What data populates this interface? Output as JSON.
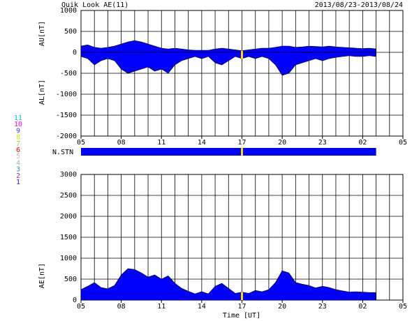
{
  "chart_data": [
    {
      "type": "area",
      "title": "Quik Look AE(11)",
      "subtitle": "2013/08/23-2013/08/24",
      "ylabel_upper": "AU[nT]",
      "ylabel_lower": "AL[nT]",
      "x": [
        0,
        0.5,
        1,
        1.5,
        2,
        2.5,
        3,
        3.5,
        4,
        4.5,
        5,
        5.5,
        6,
        6.5,
        7,
        7.5,
        8,
        8.5,
        9,
        9.5,
        10,
        10.5,
        11,
        11.5,
        12,
        12.5,
        13,
        13.5,
        14,
        14.5,
        15,
        15.5,
        16,
        16.5,
        17,
        17.5,
        18,
        18.5,
        19,
        19.5,
        20,
        20.5,
        21,
        21.5,
        22
      ],
      "series": [
        {
          "name": "AU",
          "color": "#0000ff",
          "values": [
            150,
            180,
            120,
            100,
            120,
            150,
            200,
            250,
            280,
            250,
            200,
            150,
            100,
            80,
            100,
            80,
            60,
            50,
            50,
            50,
            80,
            100,
            80,
            60,
            40,
            60,
            80,
            100,
            100,
            120,
            150,
            150,
            120,
            130,
            150,
            140,
            130,
            150,
            130,
            120,
            110,
            100,
            90,
            100,
            80
          ]
        },
        {
          "name": "AL",
          "color": "#0000ff",
          "values": [
            -100,
            -150,
            -300,
            -200,
            -150,
            -200,
            -400,
            -500,
            -450,
            -400,
            -350,
            -450,
            -400,
            -500,
            -300,
            -200,
            -150,
            -100,
            -150,
            -100,
            -250,
            -300,
            -200,
            -100,
            -150,
            -100,
            -150,
            -100,
            -150,
            -300,
            -550,
            -500,
            -300,
            -250,
            -200,
            -150,
            -200,
            -150,
            -120,
            -100,
            -80,
            -100,
            -100,
            -80,
            -100
          ]
        }
      ],
      "highlight_x": 12,
      "highlight_color": "#ffd700",
      "xlim": [
        0,
        24
      ],
      "xticks": [
        {
          "value": 0,
          "label": "05"
        },
        {
          "value": 3,
          "label": "08"
        },
        {
          "value": 6,
          "label": "11"
        },
        {
          "value": 9,
          "label": "14"
        },
        {
          "value": 12,
          "label": "17"
        },
        {
          "value": 15,
          "label": "20"
        },
        {
          "value": 18,
          "label": "23"
        },
        {
          "value": 21,
          "label": "02"
        },
        {
          "value": 24,
          "label": "05"
        }
      ],
      "x_minor_step": 1,
      "ylim": [
        -2000,
        1000
      ],
      "yticks": [
        1000,
        500,
        0,
        -500,
        -1000,
        -1500,
        -2000
      ],
      "grid": true
    },
    {
      "type": "area",
      "ylabel": "AE[nT]",
      "xlabel": "Time [UT]",
      "x": [
        0,
        0.5,
        1,
        1.5,
        2,
        2.5,
        3,
        3.5,
        4,
        4.5,
        5,
        5.5,
        6,
        6.5,
        7,
        7.5,
        8,
        8.5,
        9,
        9.5,
        10,
        10.5,
        11,
        11.5,
        12,
        12.5,
        13,
        13.5,
        14,
        14.5,
        15,
        15.5,
        16,
        16.5,
        17,
        17.5,
        18,
        18.5,
        19,
        19.5,
        20,
        20.5,
        21,
        21.5,
        22
      ],
      "series": [
        {
          "name": "AE",
          "color": "#0000ff",
          "values": [
            250,
            330,
            420,
            300,
            270,
            350,
            600,
            750,
            730,
            650,
            550,
            600,
            500,
            580,
            400,
            280,
            210,
            150,
            200,
            150,
            330,
            400,
            280,
            160,
            190,
            160,
            230,
            200,
            250,
            420,
            700,
            650,
            420,
            380,
            350,
            290,
            330,
            300,
            250,
            220,
            190,
            200,
            190,
            180,
            180
          ]
        }
      ],
      "highlight_x": 12,
      "highlight_color": "#ffd700",
      "xlim": [
        0,
        24
      ],
      "xticks": [
        {
          "value": 0,
          "label": "05"
        },
        {
          "value": 3,
          "label": "08"
        },
        {
          "value": 6,
          "label": "11"
        },
        {
          "value": 9,
          "label": "14"
        },
        {
          "value": 12,
          "label": "17"
        },
        {
          "value": 15,
          "label": "20"
        },
        {
          "value": 18,
          "label": "23"
        },
        {
          "value": 21,
          "label": "02"
        },
        {
          "value": 24,
          "label": "05"
        }
      ],
      "x_minor_step": 1,
      "ylim": [
        0,
        3000
      ],
      "yticks": [
        3000,
        2500,
        2000,
        1500,
        1000,
        500,
        0
      ],
      "grid": true
    }
  ],
  "station_bar": {
    "label": "N.STN",
    "x": [
      0,
      22
    ],
    "color": "#0000ff",
    "highlight_x": 12,
    "highlight_color": "#ffd700"
  },
  "stations": [
    {
      "label": "11",
      "color": "#00d0d0"
    },
    {
      "label": "10",
      "color": "#ff00ff"
    },
    {
      "label": "9",
      "color": "#4040ff"
    },
    {
      "label": "8",
      "color": "#e0e000"
    },
    {
      "label": "7",
      "color": "#a0d040"
    },
    {
      "label": "6",
      "color": "#ff0000"
    },
    {
      "label": "5",
      "color": "#c0c0c0"
    },
    {
      "label": "4",
      "color": "#a0b0c0"
    },
    {
      "label": "3",
      "color": "#20a0a0"
    },
    {
      "label": "2",
      "color": "#a030a0"
    },
    {
      "label": "1",
      "color": "#2020ff"
    }
  ]
}
